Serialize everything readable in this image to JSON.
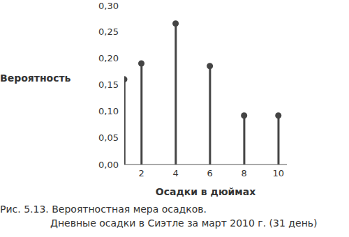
{
  "chart_data": {
    "type": "stem",
    "title": "Рис. 5.13. Вероятностная мера осадков.",
    "subtitle": "Дневные осадки в Сиэтле за март 2010 г. (31 день)",
    "x_label": "Осадки в дюймах",
    "y_label": "Вероятность",
    "x": [
      1,
      2,
      4,
      6,
      8,
      10
    ],
    "values": [
      0.16,
      0.19,
      0.265,
      0.185,
      0.092,
      0.092
    ],
    "color": "#444444",
    "marker": "circle",
    "xlim": [
      1,
      10.5
    ],
    "xticks": [
      2,
      4,
      6,
      8,
      10
    ],
    "ylim": [
      0,
      0.3
    ],
    "yticks": [
      {
        "value": 0,
        "label": "0,00"
      },
      {
        "value": 0.05,
        "label": "0,05"
      },
      {
        "value": 0.1,
        "label": "0,10"
      },
      {
        "value": 0.15,
        "label": "0,15"
      },
      {
        "value": 0.2,
        "label": "0,20"
      },
      {
        "value": 0.25,
        "label": "0,25"
      },
      {
        "value": 0.3,
        "label": "0,30"
      }
    ],
    "grid": false
  }
}
